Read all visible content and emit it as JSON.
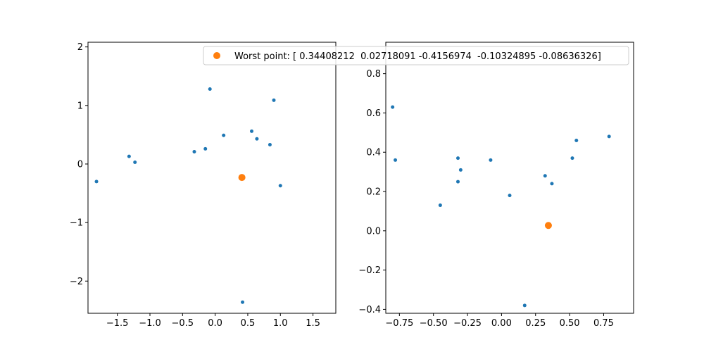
{
  "chart_data": [
    {
      "type": "scatter",
      "title": "",
      "xlabel": "",
      "ylabel": "",
      "xlim": [
        -1.95,
        1.85
      ],
      "ylim": [
        -2.55,
        2.08
      ],
      "xticks": [
        -1.5,
        -1.0,
        -0.5,
        0.0,
        0.5,
        1.0,
        1.5
      ],
      "xtick_labels": [
        "−1.5",
        "−1.0",
        "−0.5",
        "0.0",
        "0.5",
        "1.0",
        "1.5"
      ],
      "yticks": [
        -2,
        -1,
        0,
        1,
        2
      ],
      "ytick_labels": [
        "−2",
        "−1",
        "0",
        "1",
        "2"
      ],
      "grid": false,
      "series": [
        {
          "color": "#1f77b4",
          "points": [
            [
              -1.82,
              -0.3
            ],
            [
              -1.32,
              0.13
            ],
            [
              -1.23,
              0.03
            ],
            [
              -0.32,
              0.21
            ],
            [
              -0.15,
              0.26
            ],
            [
              -0.08,
              1.28
            ],
            [
              0.13,
              0.49
            ],
            [
              0.56,
              0.56
            ],
            [
              0.64,
              0.43
            ],
            [
              0.84,
              0.33
            ],
            [
              0.9,
              1.09
            ],
            [
              1.0,
              -0.37
            ],
            [
              0.42,
              -2.36
            ]
          ]
        },
        {
          "color": "#ff7f0e",
          "points": [
            [
              0.41,
              -0.23
            ]
          ]
        }
      ]
    },
    {
      "type": "scatter",
      "title": "",
      "xlabel": "",
      "ylabel": "",
      "xlim": [
        -0.85,
        0.97
      ],
      "ylim": [
        -0.42,
        0.96
      ],
      "xticks": [
        -0.75,
        -0.5,
        -0.25,
        0.0,
        0.25,
        0.5,
        0.75
      ],
      "xtick_labels": [
        "−0.75",
        "−0.50",
        "−0.25",
        "0.00",
        "0.25",
        "0.50",
        "0.75"
      ],
      "yticks": [
        -0.4,
        -0.2,
        0.0,
        0.2,
        0.4,
        0.6,
        0.8
      ],
      "ytick_labels": [
        "−0.4",
        "−0.2",
        "0.0",
        "0.2",
        "0.4",
        "0.6",
        "0.8"
      ],
      "grid": false,
      "series": [
        {
          "color": "#1f77b4",
          "points": [
            [
              -0.8,
              0.63
            ],
            [
              -0.78,
              0.36
            ],
            [
              -0.45,
              0.13
            ],
            [
              -0.32,
              0.37
            ],
            [
              -0.3,
              0.31
            ],
            [
              -0.32,
              0.25
            ],
            [
              -0.08,
              0.36
            ],
            [
              0.06,
              0.18
            ],
            [
              0.17,
              -0.38
            ],
            [
              0.32,
              0.28
            ],
            [
              0.37,
              0.24
            ],
            [
              0.52,
              0.37
            ],
            [
              0.55,
              0.46
            ],
            [
              0.79,
              0.48
            ]
          ]
        },
        {
          "name": "Worst point: [ 0.34408212  0.02718091 -0.4156974  -0.10324895 -0.08636326]",
          "color": "#ff7f0e",
          "points": [
            [
              0.34408212,
              0.02718091
            ]
          ]
        }
      ]
    }
  ],
  "legend": {
    "label": "Worst point: [ 0.34408212  0.02718091 -0.4156974  -0.10324895 -0.08636326]",
    "color": "#ff7f0e",
    "placement": "upper-left of right panel"
  }
}
